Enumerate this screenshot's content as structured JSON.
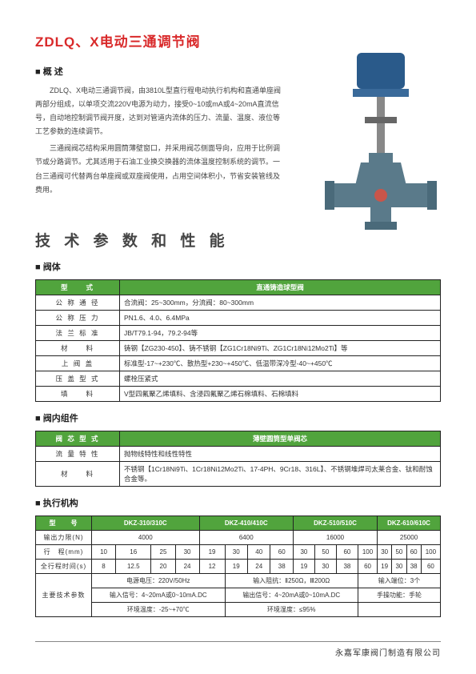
{
  "title": "ZDLQ、X电动三通调节阀",
  "overview_hdr": "■ 概 述",
  "overview_p1": "ZDLQ、X电动三通调节阀，由3810L型直行程电动执行机构和直通单座阀两部分组成，以单项交流220V电源为动力，接受0~10或mA或4~20mA直流信号，自动地控制调节阀开度，达到对管道内流体的压力、流量、温度、液位等工艺参数的连续调节。",
  "overview_p2": "三通阀阀芯结构采用圆筒薄壁窗口，并采用阀芯侧面导向，应用于比例调节或分路调节。尤其适用于石油工业换交换器的流体温度控制系统的调节。一台三通阀可代替两台单座阀或双座阀使用，占用空间体积小，节省安装管线及费用。",
  "tech_title": "技 术 参 数 和 性 能",
  "body_hdr": "■ 阀体",
  "body_table": {
    "rows": [
      [
        "型　　式",
        "直通铸造球型阀"
      ],
      [
        "公 称 通 径",
        "合流阀：25~300mm，分流阀：80~300mm"
      ],
      [
        "公 称 压 力",
        "PN1.6、4.0、6.4MPa"
      ],
      [
        "法 兰 标 准",
        "JB/T79.1-94，79.2-94等"
      ],
      [
        "材　　料",
        "铸钢【ZG230-450】、铸不锈钢【ZG1Cr18Ni9Ti、ZG1Cr18Ni12Mo2Ti】等"
      ],
      [
        "上 阀 盖",
        "标准型-17~+230℃、散热型+230~+450℃、低温带深冷型-40~+450℃"
      ],
      [
        "压 盖 型 式",
        "螺栓压紧式"
      ],
      [
        "填　　料",
        "V型四氟聚乙烯填料、含浸四氟聚乙烯石棉填料、石棉填料"
      ]
    ]
  },
  "inner_hdr": "■ 阀内组件",
  "inner_table": {
    "rows": [
      [
        "阀 芯 型 式",
        "薄壁圆筒型单阀芯"
      ],
      [
        "流 量 特 性",
        "抛物线特性和线性特性"
      ],
      [
        "材　　料",
        "不锈钢【1Cr18Ni9Ti、1Cr18Ni12Mo2Ti、17-4PH、9Cr18、316L】、不锈钢堆焊司太莱合金、钛和耐蚀合金等。"
      ]
    ]
  },
  "exec_hdr": "■ 执行机构",
  "exec_table": {
    "models": [
      "DKZ-310/310C",
      "DKZ-410/410C",
      "DKZ-510/510C",
      "DKZ-610/610C"
    ],
    "thrust": [
      "4000",
      "6400",
      "16000",
      "25000"
    ],
    "stroke_vals": [
      "10",
      "16",
      "25",
      "30",
      "19",
      "30",
      "40",
      "60",
      "30",
      "50",
      "60",
      "100",
      "30",
      "50",
      "60",
      "100"
    ],
    "time_vals": [
      "8",
      "12.5",
      "20",
      "24",
      "12",
      "19",
      "24",
      "38",
      "19",
      "30",
      "38",
      "60",
      "19",
      "30",
      "38",
      "60"
    ],
    "labels": {
      "model": "型　　号",
      "thrust": "输出力限(N)",
      "stroke": "行　程(mm)",
      "time": "全行程时间(s)",
      "spec": "主要技术参数"
    },
    "specs": [
      [
        "电源电压：220V/50Hz",
        "输入阻抗：Ⅱ250Ω，Ⅲ200Ω",
        "输入端位：3个"
      ],
      [
        "输入信号：4~20mA或0~10mA.DC",
        "输出信号：4~20mA或0~10mA.DC",
        "手操功能：手轮"
      ],
      [
        "环境温度：-25~+70℃",
        "环境湿度：≤95%",
        ""
      ]
    ]
  },
  "footer": "永嘉军康阀门制造有限公司",
  "colors": {
    "title": "#d9292a",
    "table_hdr": "#51a43d",
    "valve_body": "#5a7a8a",
    "valve_top": "#2a5a8a"
  }
}
